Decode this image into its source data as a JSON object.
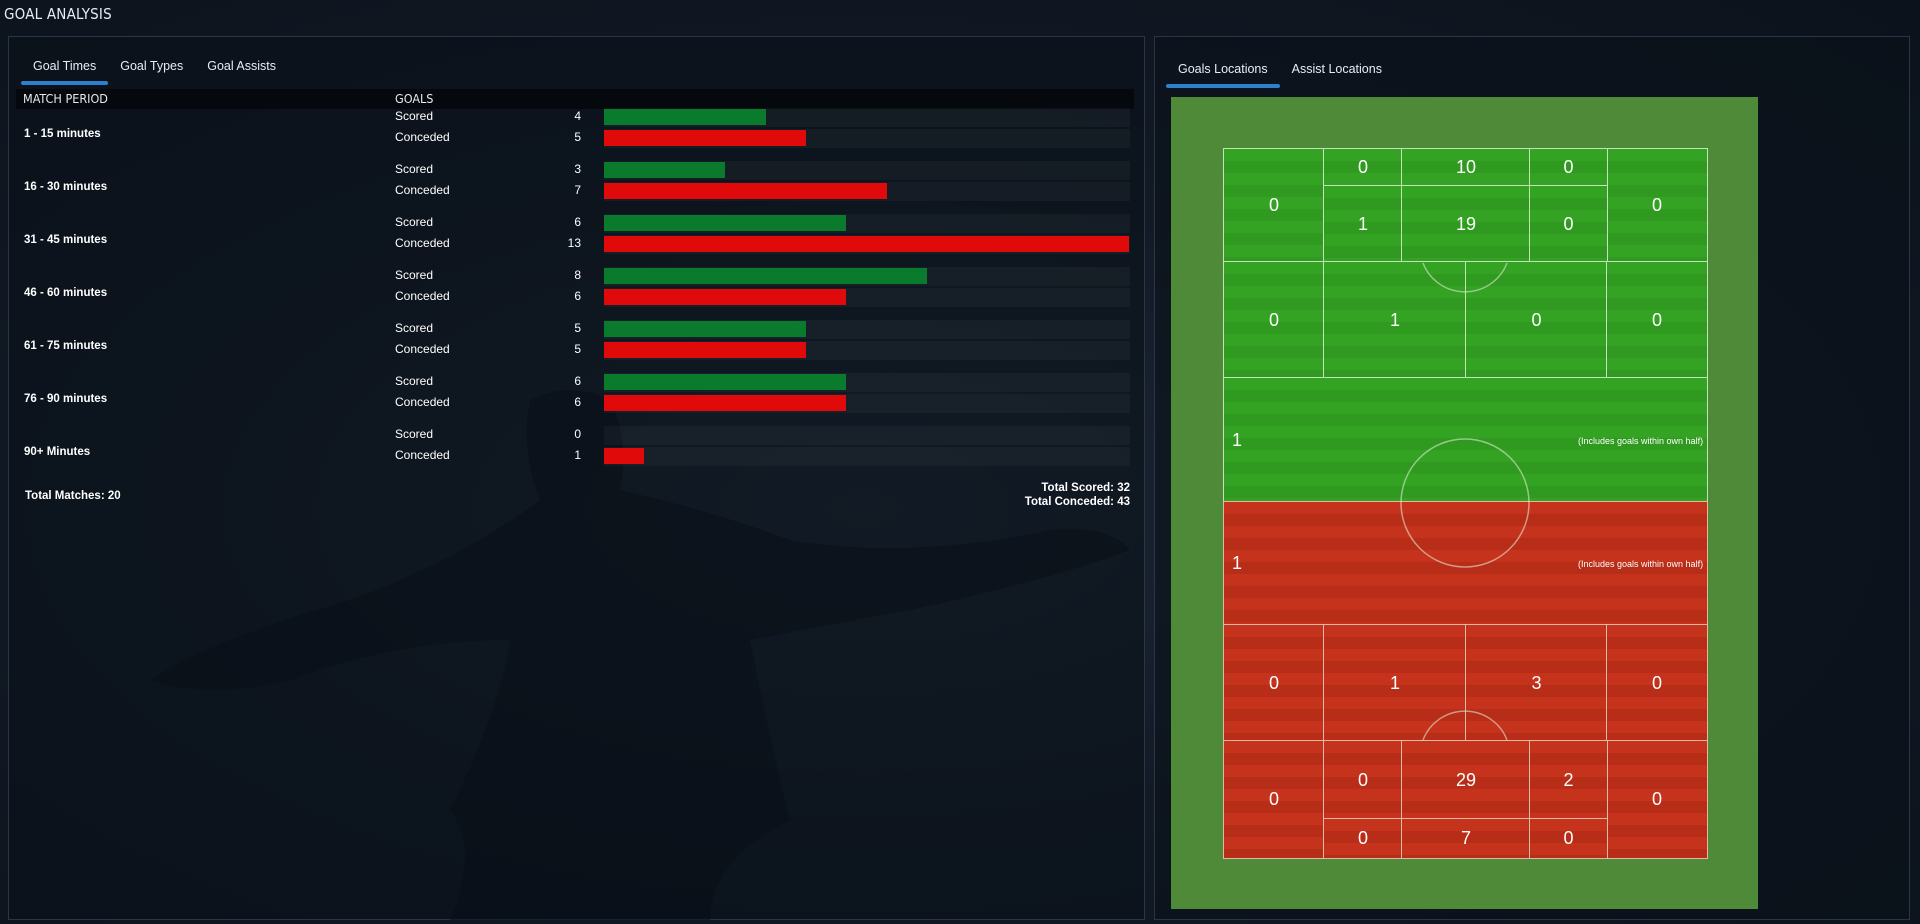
{
  "page_title": "GOAL ANALYSIS",
  "left_tabs": [
    "Goal Times",
    "Goal Types",
    "Goal Assists"
  ],
  "right_tabs": [
    "Goals Locations",
    "Assist Locations"
  ],
  "columns": {
    "period": "MATCH PERIOD",
    "goals": "GOALS"
  },
  "labels": {
    "scored": "Scored",
    "conceded": "Conceded"
  },
  "periods": [
    {
      "label": "1 - 15 minutes",
      "scored": 4,
      "conceded": 5
    },
    {
      "label": "16 - 30 minutes",
      "scored": 3,
      "conceded": 7
    },
    {
      "label": "31 - 45 minutes",
      "scored": 6,
      "conceded": 13
    },
    {
      "label": "46 - 60 minutes",
      "scored": 8,
      "conceded": 6
    },
    {
      "label": "61 - 75 minutes",
      "scored": 5,
      "conceded": 5
    },
    {
      "label": "76 - 90 minutes",
      "scored": 6,
      "conceded": 6
    },
    {
      "label": "90+ Minutes",
      "scored": 0,
      "conceded": 1
    }
  ],
  "totals": {
    "matches": "Total Matches: 20",
    "scored": "Total Scored: 32",
    "conceded": "Total Conceded: 43"
  },
  "colors": {
    "scored": "#0a7a2c",
    "conceded": "#e10a0a",
    "accent": "#2f7fcf"
  },
  "pitch": {
    "attack": {
      "six_yard": [
        "0",
        "10",
        "0"
      ],
      "box": [
        "0",
        "1",
        "19",
        "0",
        "0"
      ],
      "edge": [
        "0",
        "1",
        "0",
        "0"
      ],
      "half": "1"
    },
    "defence": {
      "half": "1",
      "edge": [
        "0",
        "1",
        "3",
        "0"
      ],
      "box": [
        "0",
        "0",
        "29",
        "2",
        "0"
      ],
      "six_yard": [
        "0",
        "7",
        "0"
      ]
    },
    "own_half_note": "(Includes goals within own half)"
  }
}
